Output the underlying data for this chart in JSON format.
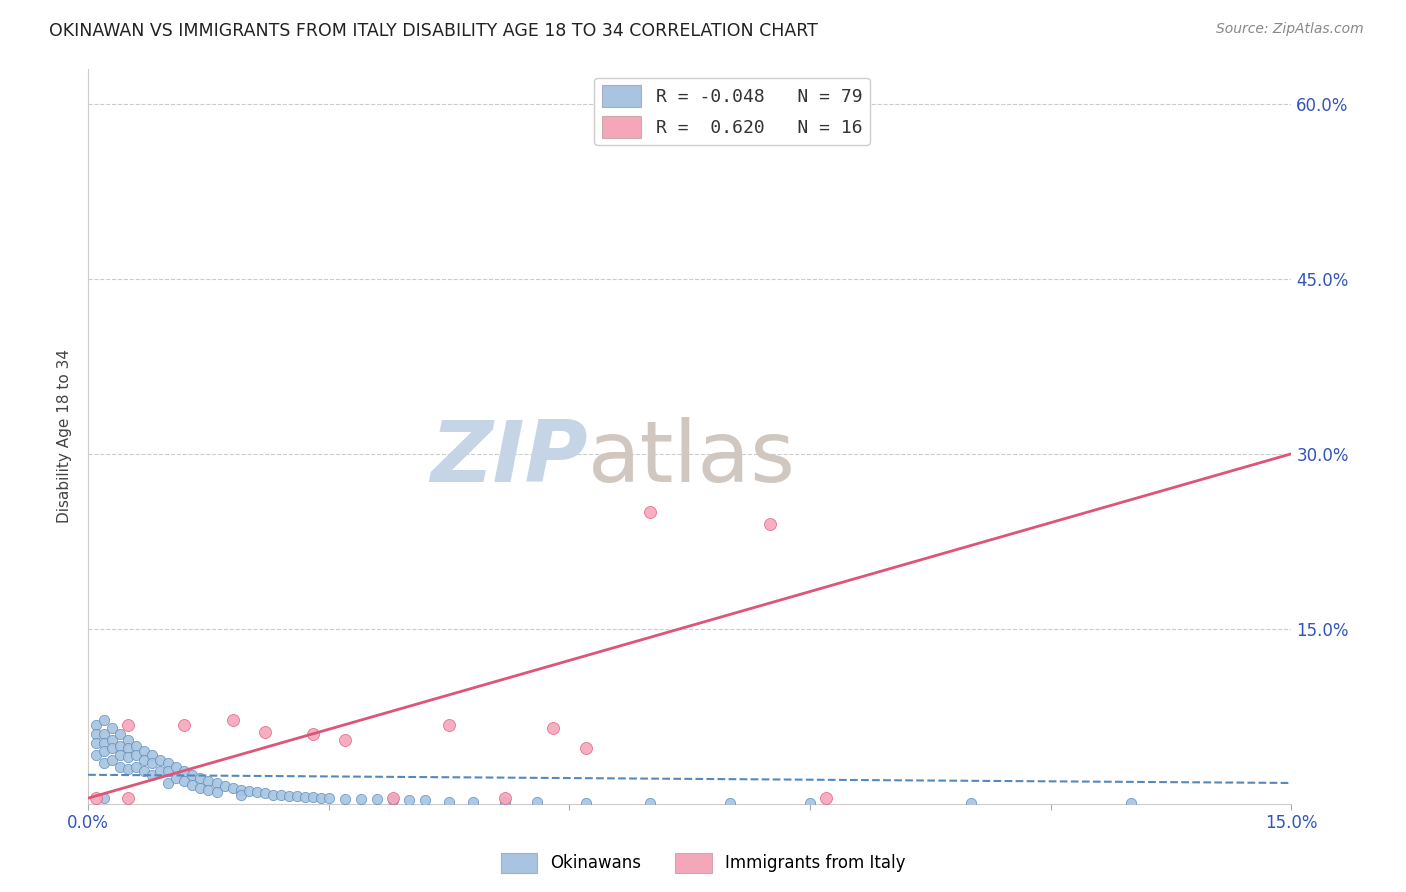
{
  "title": "OKINAWAN VS IMMIGRANTS FROM ITALY DISABILITY AGE 18 TO 34 CORRELATION CHART",
  "source": "Source: ZipAtlas.com",
  "ylabel": "Disability Age 18 to 34",
  "xlim": [
    0.0,
    0.15
  ],
  "ylim": [
    0.0,
    0.63
  ],
  "ytick_labels": [
    "60.0%",
    "45.0%",
    "30.0%",
    "15.0%"
  ],
  "ytick_vals": [
    0.6,
    0.45,
    0.3,
    0.15
  ],
  "R_okinawan": -0.048,
  "N_okinawan": 79,
  "R_italy": 0.62,
  "N_italy": 16,
  "okinawan_color": "#a8c4e0",
  "italy_color": "#f4a7b9",
  "okinawan_line_color": "#5588bb",
  "italy_line_color": "#dd5577",
  "watermark_zip": "ZIP",
  "watermark_atlas": "atlas",
  "watermark_color_zip": "#c5d5e5",
  "watermark_color_atlas": "#d0c8c0",
  "background_color": "#ffffff",
  "legend_label_1": "Okinawans",
  "legend_label_2": "Immigrants from Italy",
  "ok_x": [
    0.001,
    0.001,
    0.001,
    0.001,
    0.002,
    0.002,
    0.002,
    0.002,
    0.002,
    0.003,
    0.003,
    0.003,
    0.003,
    0.004,
    0.004,
    0.004,
    0.004,
    0.005,
    0.005,
    0.005,
    0.005,
    0.006,
    0.006,
    0.006,
    0.007,
    0.007,
    0.007,
    0.008,
    0.008,
    0.008,
    0.009,
    0.009,
    0.01,
    0.01,
    0.01,
    0.011,
    0.011,
    0.012,
    0.012,
    0.013,
    0.013,
    0.014,
    0.014,
    0.015,
    0.015,
    0.016,
    0.016,
    0.017,
    0.018,
    0.019,
    0.019,
    0.02,
    0.021,
    0.022,
    0.023,
    0.024,
    0.025,
    0.026,
    0.027,
    0.028,
    0.029,
    0.03,
    0.032,
    0.034,
    0.036,
    0.038,
    0.04,
    0.042,
    0.045,
    0.048,
    0.052,
    0.056,
    0.062,
    0.07,
    0.08,
    0.09,
    0.11,
    0.13,
    0.002
  ],
  "ok_y": [
    0.068,
    0.06,
    0.052,
    0.042,
    0.072,
    0.06,
    0.052,
    0.045,
    0.035,
    0.065,
    0.055,
    0.048,
    0.038,
    0.06,
    0.05,
    0.042,
    0.032,
    0.055,
    0.048,
    0.04,
    0.03,
    0.05,
    0.042,
    0.032,
    0.045,
    0.038,
    0.028,
    0.042,
    0.035,
    0.025,
    0.038,
    0.028,
    0.035,
    0.028,
    0.018,
    0.032,
    0.022,
    0.028,
    0.02,
    0.025,
    0.016,
    0.022,
    0.014,
    0.02,
    0.012,
    0.018,
    0.01,
    0.015,
    0.014,
    0.012,
    0.008,
    0.011,
    0.01,
    0.009,
    0.008,
    0.008,
    0.007,
    0.007,
    0.006,
    0.006,
    0.005,
    0.005,
    0.004,
    0.004,
    0.004,
    0.003,
    0.003,
    0.003,
    0.002,
    0.002,
    0.002,
    0.002,
    0.001,
    0.001,
    0.001,
    0.001,
    0.001,
    0.001,
    0.005
  ],
  "it_x": [
    0.001,
    0.005,
    0.012,
    0.018,
    0.022,
    0.028,
    0.032,
    0.038,
    0.045,
    0.052,
    0.058,
    0.062,
    0.07,
    0.085,
    0.092,
    0.005
  ],
  "it_y": [
    0.005,
    0.068,
    0.068,
    0.072,
    0.062,
    0.06,
    0.055,
    0.005,
    0.068,
    0.005,
    0.065,
    0.048,
    0.25,
    0.24,
    0.005,
    0.005
  ],
  "ok_line_x": [
    0.0,
    0.15
  ],
  "ok_line_y": [
    0.025,
    0.018
  ],
  "it_line_x": [
    0.0,
    0.15
  ],
  "it_line_y": [
    0.005,
    0.3
  ]
}
